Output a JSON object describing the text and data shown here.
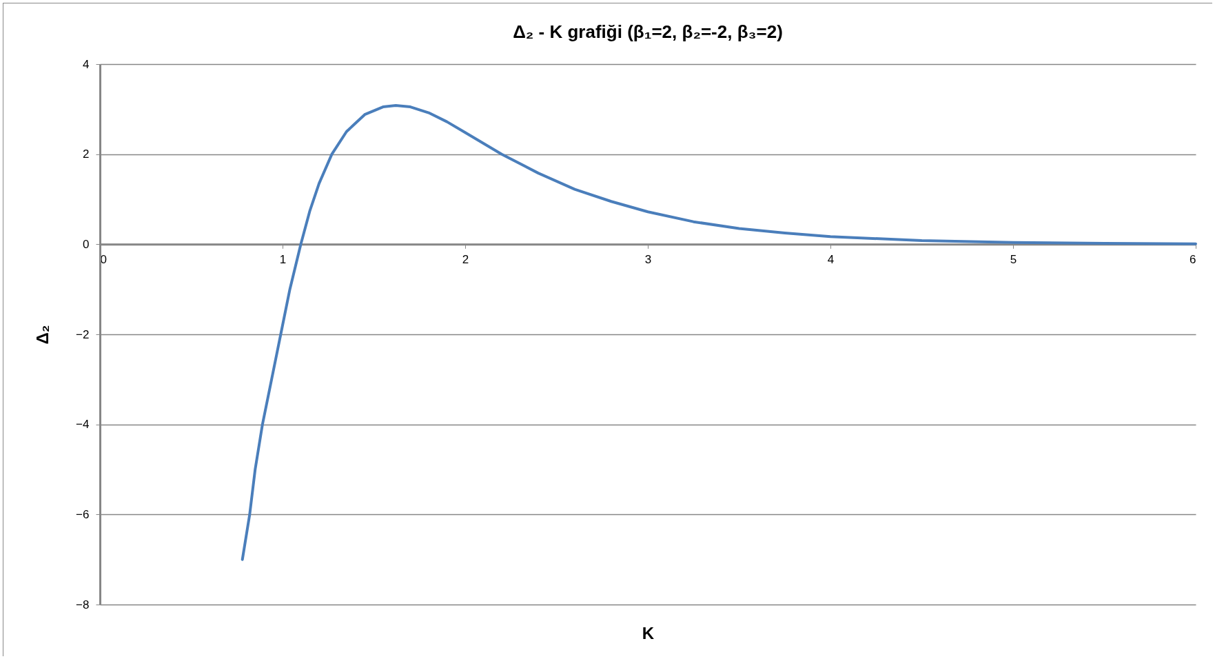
{
  "chart_data": {
    "type": "line",
    "title": "Δ₂ - K grafiği (β₁=2, β₂=-2, β₃=2)",
    "xlabel": "K",
    "ylabel": "Δ₂",
    "x": [
      0.78,
      0.82,
      0.85,
      0.89,
      0.94,
      0.99,
      1.04,
      1.1,
      1.15,
      1.2,
      1.27,
      1.35,
      1.45,
      1.55,
      1.62,
      1.7,
      1.8,
      1.9,
      2.0,
      2.2,
      2.4,
      2.6,
      2.8,
      3.0,
      3.25,
      3.5,
      3.75,
      4.0,
      4.5,
      5.0,
      5.5,
      6.0
    ],
    "series": [
      {
        "color": "#4a7ebb",
        "values": [
          -7.0,
          -6.0,
          -5.0,
          -4.0,
          -3.0,
          -2.0,
          -1.0,
          0.0,
          0.75,
          1.35,
          2.0,
          2.5,
          2.88,
          3.05,
          3.08,
          3.05,
          2.92,
          2.72,
          2.48,
          2.0,
          1.58,
          1.22,
          0.95,
          0.72,
          0.5,
          0.35,
          0.25,
          0.17,
          0.08,
          0.04,
          0.02,
          0.01
        ]
      }
    ],
    "xlim": [
      0,
      6
    ],
    "xticks": [
      0,
      1,
      2,
      3,
      4,
      5,
      6
    ],
    "ylim": [
      -8,
      4
    ],
    "yticks": [
      -8,
      -6,
      -4,
      -2,
      0,
      2,
      4
    ],
    "grid": "y",
    "legend": false,
    "line_style": "solid",
    "marker": "none"
  }
}
